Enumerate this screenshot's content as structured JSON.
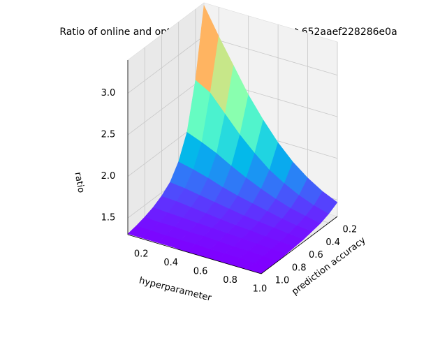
{
  "chart_data": {
    "type": "surface3d",
    "title": "Ratio of online and optimal offline cost for object 652aaef228286e0a",
    "xlabel": "hyperparameter",
    "ylabel": "prediction accuracy",
    "zlabel": "ratio",
    "x": [
      0.1,
      0.2,
      0.3,
      0.4,
      0.5,
      0.6,
      0.7,
      0.8,
      0.9,
      1.0
    ],
    "y": [
      0.1,
      0.2,
      0.3,
      0.4,
      0.5,
      0.6,
      0.7,
      0.8,
      0.9,
      1.0
    ],
    "xlim": [
      0.1,
      1.0
    ],
    "ylim": [
      0.1,
      1.0
    ],
    "zlim": [
      1.3,
      3.4
    ],
    "x_ticks": [
      "0.2",
      "0.4",
      "0.6",
      "0.8",
      "1.0"
    ],
    "y_ticks": [
      "0.2",
      "0.4",
      "0.6",
      "0.8",
      "1.0"
    ],
    "z_ticks": [
      "1.5",
      "2.0",
      "2.5",
      "3.0"
    ],
    "z_values": [
      [
        3.37,
        2.55,
        2.0,
        1.72,
        1.55,
        1.46,
        1.4,
        1.36,
        1.33,
        1.31
      ],
      [
        3.05,
        2.45,
        1.93,
        1.68,
        1.53,
        1.45,
        1.39,
        1.35,
        1.33,
        1.31
      ],
      [
        2.75,
        2.25,
        1.85,
        1.63,
        1.5,
        1.43,
        1.38,
        1.35,
        1.32,
        1.31
      ],
      [
        2.45,
        2.05,
        1.75,
        1.57,
        1.47,
        1.41,
        1.37,
        1.34,
        1.32,
        1.31
      ],
      [
        2.2,
        1.88,
        1.66,
        1.52,
        1.44,
        1.39,
        1.36,
        1.34,
        1.32,
        1.3
      ],
      [
        1.98,
        1.73,
        1.58,
        1.48,
        1.41,
        1.37,
        1.35,
        1.33,
        1.31,
        1.3
      ],
      [
        1.8,
        1.62,
        1.51,
        1.44,
        1.39,
        1.36,
        1.34,
        1.32,
        1.31,
        1.3
      ],
      [
        1.66,
        1.53,
        1.45,
        1.4,
        1.37,
        1.34,
        1.33,
        1.32,
        1.31,
        1.3
      ],
      [
        1.55,
        1.46,
        1.41,
        1.37,
        1.35,
        1.33,
        1.32,
        1.31,
        1.3,
        1.3
      ],
      [
        1.47,
        1.41,
        1.37,
        1.35,
        1.33,
        1.32,
        1.31,
        1.3,
        1.3,
        1.3
      ]
    ],
    "colormap": "rainbow",
    "grid": true,
    "legend": "none"
  }
}
